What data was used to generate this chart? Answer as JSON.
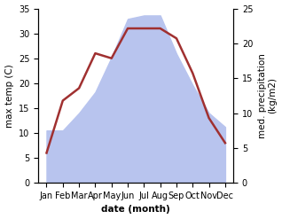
{
  "months": [
    "Jan",
    "Feb",
    "Mar",
    "Apr",
    "May",
    "Jun",
    "Jul",
    "Aug",
    "Sep",
    "Oct",
    "Nov",
    "Dec"
  ],
  "temperature": [
    6,
    16.5,
    19,
    26,
    25,
    31,
    31,
    31,
    29,
    22,
    13,
    8
  ],
  "precipitation": [
    7.5,
    7.5,
    10,
    13,
    18,
    23.5,
    24,
    24,
    18.5,
    14,
    10,
    8
  ],
  "temp_color": "#a03030",
  "precip_color": "#b8c4ee",
  "temp_ylim": [
    0,
    35
  ],
  "precip_ylim": [
    0,
    25
  ],
  "temp_yticks": [
    0,
    5,
    10,
    15,
    20,
    25,
    30,
    35
  ],
  "precip_yticks": [
    0,
    5,
    10,
    15,
    20,
    25
  ],
  "xlabel": "date (month)",
  "ylabel_left": "max temp (C)",
  "ylabel_right": "med. precipitation\n(kg/m2)",
  "axis_fontsize": 7.5,
  "tick_fontsize": 7,
  "line_width": 1.8,
  "background_color": "#ffffff"
}
